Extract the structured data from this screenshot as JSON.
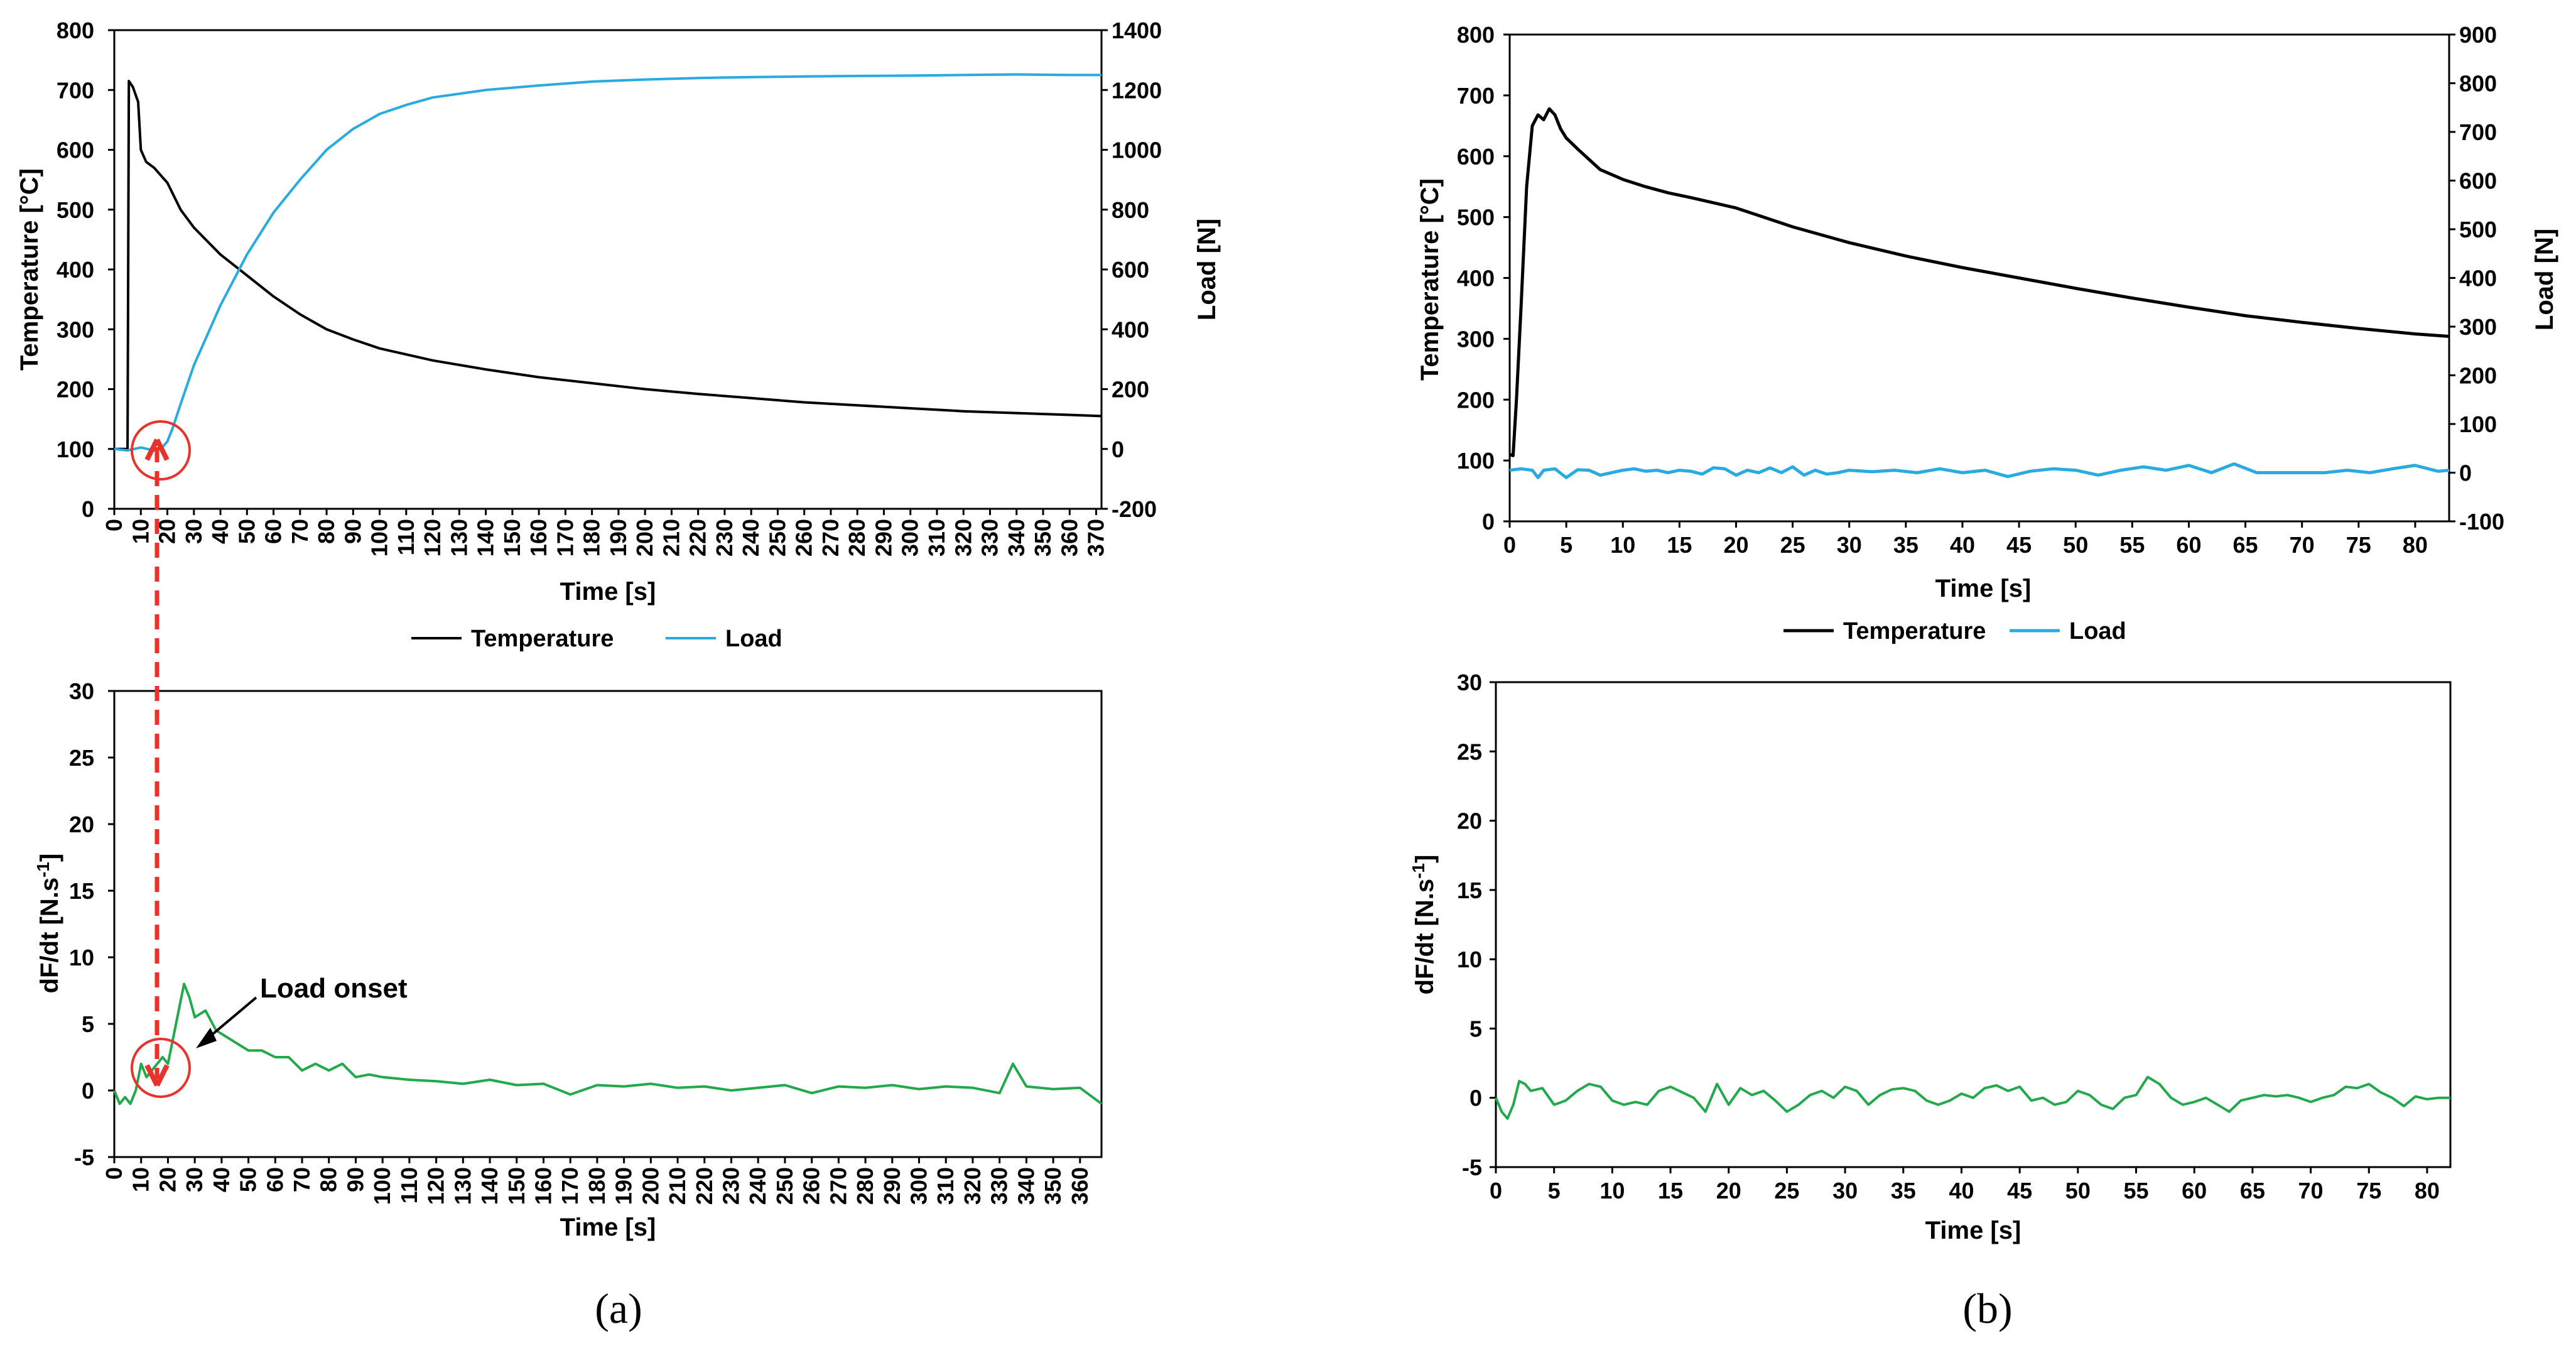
{
  "colors": {
    "temperature": "#000000",
    "load": "#29ABE2",
    "derivative": "#22A94B",
    "marker": "#E8322B"
  },
  "chart_data": [
    {
      "id": "a-top",
      "type": "line",
      "x_axis": {
        "label": "Time [s]",
        "range": [
          0,
          372
        ],
        "ticks": [
          0,
          10,
          20,
          30,
          40,
          50,
          60,
          70,
          80,
          90,
          100,
          110,
          120,
          130,
          140,
          150,
          160,
          170,
          180,
          190,
          200,
          210,
          220,
          230,
          240,
          250,
          260,
          270,
          280,
          290,
          300,
          310,
          320,
          330,
          340,
          350,
          360,
          370
        ]
      },
      "y_axis": {
        "label": "Temperature [°C]",
        "range": [
          0,
          800
        ],
        "ticks": [
          0,
          100,
          200,
          300,
          400,
          500,
          600,
          700,
          800
        ]
      },
      "y2_axis": {
        "label": "Load [N]",
        "range": [
          -200,
          1400
        ],
        "ticks": [
          -200,
          0,
          200,
          400,
          600,
          800,
          1000,
          1200,
          1400
        ]
      },
      "legend": [
        "Temperature",
        "Load"
      ],
      "series": [
        {
          "name": "Temperature",
          "axis": "y",
          "x": [
            0,
            5,
            5.5,
            7,
            9,
            10,
            12,
            15,
            20,
            25,
            30,
            40,
            50,
            60,
            70,
            80,
            90,
            100,
            120,
            140,
            160,
            180,
            200,
            220,
            240,
            260,
            280,
            300,
            320,
            340,
            360,
            372
          ],
          "y": [
            100,
            100,
            715,
            705,
            680,
            600,
            580,
            570,
            545,
            500,
            470,
            425,
            390,
            355,
            325,
            300,
            283,
            268,
            248,
            233,
            220,
            210,
            200,
            192,
            185,
            178,
            173,
            168,
            163,
            160,
            157,
            155
          ]
        },
        {
          "name": "Load",
          "axis": "y2",
          "x": [
            0,
            5,
            10,
            15,
            18,
            20,
            22,
            25,
            30,
            40,
            50,
            60,
            70,
            80,
            90,
            100,
            110,
            120,
            140,
            160,
            180,
            200,
            220,
            240,
            260,
            280,
            300,
            320,
            340,
            360,
            372
          ],
          "y": [
            0,
            -5,
            5,
            -5,
            5,
            25,
            70,
            150,
            280,
            480,
            650,
            790,
            900,
            1000,
            1070,
            1120,
            1150,
            1175,
            1200,
            1215,
            1228,
            1235,
            1240,
            1243,
            1245,
            1247,
            1248,
            1250,
            1252,
            1250,
            1250
          ]
        }
      ]
    },
    {
      "id": "a-bottom",
      "type": "line",
      "x_axis": {
        "label": "Time [s]",
        "range": [
          0,
          368
        ],
        "ticks": [
          0,
          10,
          20,
          30,
          40,
          50,
          60,
          70,
          80,
          90,
          100,
          110,
          120,
          130,
          140,
          150,
          160,
          170,
          180,
          190,
          200,
          210,
          220,
          230,
          240,
          250,
          260,
          270,
          280,
          290,
          300,
          310,
          320,
          330,
          340,
          350,
          360
        ]
      },
      "y_axis": {
        "label": "dF/dt [N.s",
        "label_sup": "-1",
        "label_end": "]",
        "range": [
          -5,
          30
        ],
        "ticks": [
          -5,
          0,
          5,
          10,
          15,
          20,
          25,
          30
        ]
      },
      "series": [
        {
          "name": "dF/dt",
          "x": [
            0,
            2,
            4,
            6,
            8,
            10,
            12,
            14,
            16,
            18,
            20,
            22,
            24,
            26,
            28,
            30,
            34,
            38,
            42,
            46,
            50,
            55,
            60,
            65,
            70,
            75,
            80,
            85,
            90,
            95,
            100,
            110,
            120,
            130,
            140,
            150,
            160,
            170,
            180,
            190,
            200,
            210,
            220,
            230,
            240,
            250,
            260,
            270,
            280,
            290,
            300,
            310,
            320,
            330,
            335,
            340,
            350,
            360,
            368
          ],
          "y": [
            0,
            -1,
            -0.5,
            -1,
            0,
            2,
            1,
            1.5,
            2,
            2.5,
            2,
            4,
            6,
            8,
            7,
            5.5,
            6,
            4.5,
            4,
            3.5,
            3,
            3,
            2.5,
            2.5,
            1.5,
            2,
            1.5,
            2,
            1,
            1.2,
            1,
            0.8,
            0.7,
            0.5,
            0.8,
            0.4,
            0.5,
            -0.3,
            0.4,
            0.3,
            0.5,
            0.2,
            0.3,
            0,
            0.2,
            0.4,
            -0.2,
            0.3,
            0.2,
            0.4,
            0.1,
            0.3,
            0.2,
            -0.2,
            2,
            0.3,
            0.1,
            0.2,
            -1
          ]
        }
      ],
      "annotation": "Load onset"
    },
    {
      "id": "b-top",
      "type": "line",
      "x_axis": {
        "label": "Time [s]",
        "range": [
          0,
          83
        ],
        "ticks": [
          0,
          5,
          10,
          15,
          20,
          25,
          30,
          35,
          40,
          45,
          50,
          55,
          60,
          65,
          70,
          75,
          80
        ]
      },
      "y_axis": {
        "label": "Temperature [°C]",
        "range": [
          0,
          800
        ],
        "ticks": [
          0,
          100,
          200,
          300,
          400,
          500,
          600,
          700,
          800
        ]
      },
      "y2_axis": {
        "label": "Load [N]",
        "range": [
          -100,
          900
        ],
        "ticks": [
          -100,
          0,
          100,
          200,
          300,
          400,
          500,
          600,
          700,
          800,
          900
        ]
      },
      "legend": [
        "Temperature",
        "Load"
      ],
      "series": [
        {
          "name": "Temperature",
          "axis": "y",
          "x": [
            0,
            0.3,
            0.6,
            1,
            1.5,
            2,
            2.5,
            3,
            3.5,
            4,
            4.5,
            5,
            6,
            7,
            8,
            10,
            12,
            14,
            16,
            20,
            25,
            30,
            35,
            40,
            45,
            50,
            55,
            60,
            65,
            70,
            75,
            80,
            83
          ],
          "y": [
            110,
            108,
            200,
            350,
            550,
            650,
            668,
            660,
            678,
            668,
            645,
            630,
            612,
            595,
            578,
            562,
            550,
            540,
            532,
            515,
            484,
            458,
            436,
            417,
            400,
            383,
            367,
            352,
            338,
            327,
            317,
            308,
            304
          ]
        },
        {
          "name": "Load",
          "axis": "y2",
          "x": [
            0,
            1,
            2,
            2.5,
            3,
            4,
            5,
            6,
            7,
            8,
            9,
            10,
            11,
            12,
            13,
            14,
            15,
            16,
            17,
            18,
            19,
            20,
            21,
            22,
            23,
            24,
            25,
            26,
            27,
            28,
            29,
            30,
            32,
            34,
            36,
            38,
            40,
            42,
            44,
            46,
            48,
            50,
            52,
            54,
            56,
            58,
            60,
            62,
            64,
            66,
            68,
            70,
            72,
            74,
            76,
            78,
            80,
            82,
            83
          ],
          "y": [
            5,
            8,
            5,
            -10,
            5,
            8,
            -10,
            6,
            5,
            -5,
            0,
            5,
            8,
            3,
            5,
            0,
            5,
            3,
            -3,
            10,
            8,
            -5,
            5,
            0,
            10,
            0,
            12,
            -5,
            5,
            -3,
            0,
            5,
            2,
            5,
            0,
            8,
            0,
            5,
            -8,
            3,
            8,
            5,
            -5,
            5,
            12,
            5,
            15,
            0,
            18,
            0,
            0,
            0,
            0,
            5,
            0,
            8,
            15,
            3,
            5
          ]
        }
      ]
    },
    {
      "id": "b-bottom",
      "type": "line",
      "x_axis": {
        "label": "Time [s]",
        "range": [
          0,
          82
        ],
        "ticks": [
          0,
          5,
          10,
          15,
          20,
          25,
          30,
          35,
          40,
          45,
          50,
          55,
          60,
          65,
          70,
          75,
          80
        ]
      },
      "y_axis": {
        "label": "dF/dt [N.s",
        "label_sup": "-1",
        "label_end": "]",
        "range": [
          -5,
          30
        ],
        "ticks": [
          -5,
          0,
          5,
          10,
          15,
          20,
          25,
          30
        ]
      },
      "series": [
        {
          "name": "dF/dt",
          "x": [
            0,
            0.5,
            1,
            1.5,
            2,
            2.5,
            3,
            4,
            5,
            6,
            7,
            8,
            9,
            10,
            11,
            12,
            13,
            14,
            15,
            16,
            17,
            18,
            19,
            20,
            21,
            22,
            23,
            24,
            25,
            26,
            27,
            28,
            29,
            30,
            31,
            32,
            33,
            34,
            35,
            36,
            37,
            38,
            39,
            40,
            41,
            42,
            43,
            44,
            45,
            46,
            47,
            48,
            49,
            50,
            51,
            52,
            53,
            54,
            55,
            56,
            57,
            58,
            59,
            60,
            61,
            62,
            63,
            64,
            65,
            66,
            67,
            68,
            69,
            70,
            71,
            72,
            73,
            74,
            75,
            76,
            77,
            78,
            79,
            80,
            81,
            82
          ],
          "y": [
            0,
            -1,
            -1.5,
            -0.5,
            1.2,
            1,
            0.5,
            0.7,
            -0.5,
            -0.2,
            0.5,
            1,
            0.8,
            -0.2,
            -0.5,
            -0.3,
            -0.5,
            0.5,
            0.8,
            0.4,
            0,
            -1,
            1,
            -0.5,
            0.7,
            0.2,
            0.5,
            -0.2,
            -1,
            -0.5,
            0.2,
            0.5,
            0,
            0.8,
            0.5,
            -0.5,
            0.2,
            0.6,
            0.7,
            0.5,
            -0.2,
            -0.5,
            -0.2,
            0.3,
            0,
            0.7,
            0.9,
            0.5,
            0.8,
            -0.2,
            0,
            -0.5,
            -0.3,
            0.5,
            0.2,
            -0.5,
            -0.8,
            0,
            0.2,
            1.5,
            1,
            0,
            -0.5,
            -0.3,
            0,
            -0.5,
            -1,
            -0.2,
            0,
            0.2,
            0.1,
            0.2,
            0,
            -0.3,
            0,
            0.2,
            0.8,
            0.7,
            1,
            0.4,
            0,
            -0.6,
            0.1,
            -0.1,
            0,
            0
          ]
        }
      ]
    }
  ],
  "captions": {
    "a": "(a)",
    "b": "(b)"
  }
}
